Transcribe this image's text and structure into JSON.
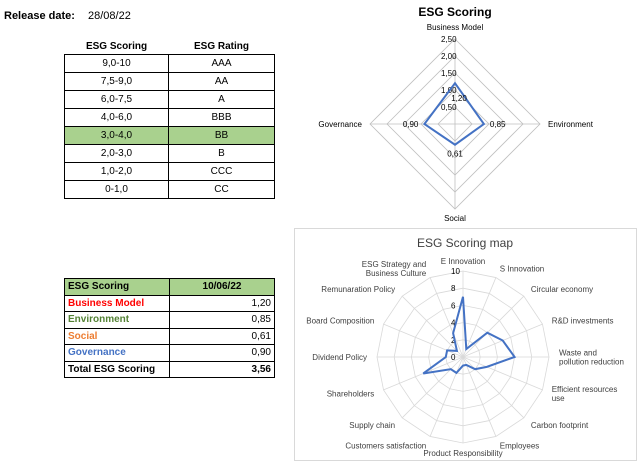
{
  "release": {
    "label": "Release date:",
    "date": "28/08/22"
  },
  "rating_table": {
    "headers": [
      "ESG Scoring",
      "ESG Rating"
    ],
    "highlight_index": 4,
    "highlight_color": "#a9d18e",
    "rows": [
      [
        "9,0-10",
        "AAA"
      ],
      [
        "7,5-9,0",
        "AA"
      ],
      [
        "6,0-7,5",
        "A"
      ],
      [
        "4,0-6,0",
        "BBB"
      ],
      [
        "3,0-4,0",
        "BB"
      ],
      [
        "2,0-3,0",
        "B"
      ],
      [
        "1,0-2,0",
        "CCC"
      ],
      [
        "0-1,0",
        "CC"
      ]
    ]
  },
  "score_table": {
    "headers": [
      "ESG Scoring",
      "10/06/22"
    ],
    "rows": [
      {
        "name": "Business Model",
        "value": "1,20",
        "color": "#ff0000"
      },
      {
        "name": "Environment",
        "value": "0,85",
        "color": "#548235"
      },
      {
        "name": "Social",
        "value": "0,61",
        "color": "#ed7d31"
      },
      {
        "name": "Governance",
        "value": "0,90",
        "color": "#4472c4"
      }
    ],
    "total": {
      "name": "Total ESG Scoring",
      "value": "3,56"
    }
  },
  "chart_data": [
    {
      "type": "radar",
      "title": "ESG Scoring",
      "categories": [
        "Business Model",
        "Environment",
        "Social",
        "Governance"
      ],
      "ticks": [
        "0,50",
        "1,00",
        "1,50",
        "2,00",
        "2,50"
      ],
      "tick_values": [
        0.5,
        1.0,
        1.5,
        2.0,
        2.5
      ],
      "max": 2.5,
      "series": [
        {
          "values": [
            1.2,
            0.85,
            0.61,
            0.9
          ],
          "value_labels": [
            "1,20",
            "0,85",
            "0,61",
            "0,90"
          ],
          "color": "#4472c4"
        }
      ]
    },
    {
      "type": "radar",
      "title": "ESG Scoring map",
      "categories": [
        "E Innovation",
        "S Innovation",
        "Circular economy",
        "R&D investments",
        "Waste and pollution reduction",
        "Efficient resources use",
        "Carbon footprint",
        "Employees",
        "Product Responsibility",
        "Customers satisfaction",
        "Supply chain",
        "Shareholders",
        "Dividend Policy",
        "Board Composition",
        "Remunaration Policy",
        "ESG Strategy and Business Culture"
      ],
      "ticks": [
        "0",
        "2",
        "4",
        "6",
        "8",
        "10"
      ],
      "max": 10,
      "series": [
        {
          "values": [
            7,
            1,
            4,
            5,
            6,
            3,
            2,
            1,
            1,
            2,
            2,
            5,
            2,
            2,
            1,
            3
          ],
          "color": "#4472c4"
        }
      ]
    }
  ]
}
